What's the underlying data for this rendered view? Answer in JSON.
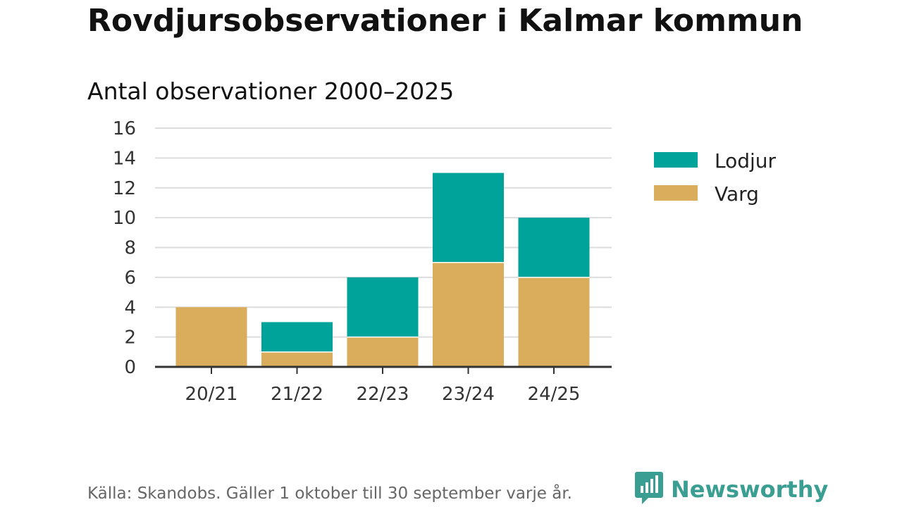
{
  "header": {
    "title": "Rovdjursobservationer i Kalmar kommun",
    "subtitle": "Antal observationer 2000–2025"
  },
  "chart_data": {
    "type": "bar",
    "stacked": true,
    "categories": [
      "20/21",
      "21/22",
      "22/23",
      "23/24",
      "24/25"
    ],
    "series": [
      {
        "name": "Varg",
        "color": "#d9ad5b",
        "values": [
          4,
          1,
          2,
          7,
          6
        ]
      },
      {
        "name": "Lodjur",
        "color": "#00a39a",
        "values": [
          0,
          2,
          4,
          6,
          4
        ]
      }
    ],
    "legend_order": [
      "Lodjur",
      "Varg"
    ],
    "yticks": [
      0,
      2,
      4,
      6,
      8,
      10,
      12,
      14,
      16
    ],
    "ylim": [
      0,
      16
    ],
    "grid": true,
    "legend_position": "right"
  },
  "footer": {
    "source": "Källa: Skandobs. Gäller 1 oktober till 30 september varje år.",
    "brand": "Newsworthy",
    "brand_icon": "newsworthy-logo-icon",
    "brand_color": "#3a9e92"
  }
}
